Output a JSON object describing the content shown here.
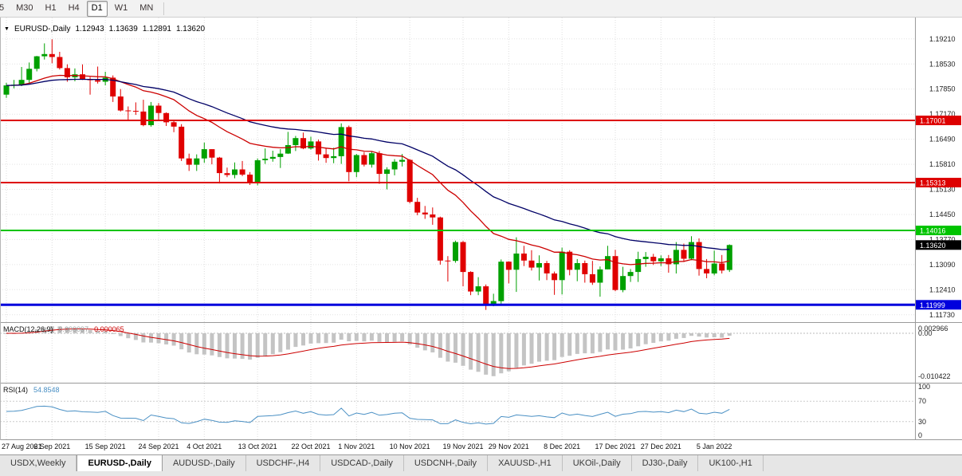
{
  "toolbar": {
    "timeframes": [
      {
        "label": "5",
        "active": false
      },
      {
        "label": "M30",
        "active": false
      },
      {
        "label": "H1",
        "active": false
      },
      {
        "label": "H4",
        "active": false
      },
      {
        "label": "D1",
        "active": true
      },
      {
        "label": "W1",
        "active": false
      },
      {
        "label": "MN",
        "active": false
      }
    ]
  },
  "chart_header": {
    "dropdown_icon": "▼",
    "symbol_label": "EURUSD-,Daily",
    "open": "1.12943",
    "high": "1.13639",
    "low": "1.12891",
    "close": "1.13620"
  },
  "price_axis": {
    "labels": [
      "1.19210",
      "1.18530",
      "1.17850",
      "1.17170",
      "1.16490",
      "1.15810",
      "1.15130",
      "1.14450",
      "1.13770",
      "1.13090",
      "1.12410",
      "1.11730"
    ],
    "tags": [
      {
        "label": "1.17001",
        "price": 1.17001,
        "color": "#dd0000"
      },
      {
        "label": "1.15313",
        "price": 1.15313,
        "color": "#dd0000"
      },
      {
        "label": "1.14016",
        "price": 1.14016,
        "color": "#00c400"
      },
      {
        "label": "1.13620",
        "price": 1.1362,
        "color": "#000000"
      },
      {
        "label": "1.11999",
        "price": 1.11999,
        "color": "#0000dd"
      }
    ]
  },
  "indicators": {
    "macd": {
      "label": "MACD(12,26,9)",
      "value_main": "0.000097",
      "value_signal": "0.000065",
      "axis_labels": [
        "0.002966",
        "0.00",
        "-0.010422"
      ]
    },
    "rsi": {
      "label": "RSI(14)",
      "value": "54.8548",
      "axis_labels": [
        "100",
        "70",
        "30",
        "0"
      ]
    }
  },
  "tabs": {
    "items": [
      "USDX,Weekly",
      "EURUSD-,Daily",
      "AUDUSD-,Daily",
      "USDCHF-,H4",
      "USDCAD-,Daily",
      "USDCNH-,Daily",
      "XAUUSD-,H1",
      "UKOil-,Daily",
      "DJ30-,Daily",
      "UK100-,H1"
    ],
    "active_index": 1
  },
  "chart_data": {
    "type": "candlestick",
    "title": "EURUSD-,Daily",
    "price_range": {
      "max": 1.1979,
      "min": 1.1153
    },
    "y_grid": [
      1.1921,
      1.1853,
      1.1785,
      1.1717,
      1.1649,
      1.1581,
      1.1513,
      1.1445,
      1.1377,
      1.1309,
      1.1241,
      1.1173
    ],
    "x_ticks": [
      {
        "bar": 0,
        "label": "27 Aug 2021"
      },
      {
        "bar": 6,
        "label": "6 Sep 2021"
      },
      {
        "bar": 13,
        "label": "15 Sep 2021"
      },
      {
        "bar": 20,
        "label": "24 Sep 2021"
      },
      {
        "bar": 26,
        "label": "4 Oct 2021"
      },
      {
        "bar": 33,
        "label": "13 Oct 2021"
      },
      {
        "bar": 40,
        "label": "22 Oct 2021"
      },
      {
        "bar": 46,
        "label": "1 Nov 2021"
      },
      {
        "bar": 53,
        "label": "10 Nov 2021"
      },
      {
        "bar": 60,
        "label": "19 Nov 2021"
      },
      {
        "bar": 66,
        "label": "29 Nov 2021"
      },
      {
        "bar": 73,
        "label": "8 Dec 2021"
      },
      {
        "bar": 80,
        "label": "17 Dec 2021"
      },
      {
        "bar": 86,
        "label": "27 Dec 2021"
      },
      {
        "bar": 93,
        "label": "5 Jan 2022"
      }
    ],
    "ohlc": [
      [
        1.177,
        1.1802,
        1.1761,
        1.1795
      ],
      [
        1.1795,
        1.181,
        1.1787,
        1.1797
      ],
      [
        1.1797,
        1.1845,
        1.1793,
        1.181
      ],
      [
        1.181,
        1.1857,
        1.18,
        1.184
      ],
      [
        1.184,
        1.1875,
        1.1833,
        1.1874
      ],
      [
        1.1874,
        1.1909,
        1.1865,
        1.188
      ],
      [
        1.188,
        1.192,
        1.1855,
        1.1872
      ],
      [
        1.1872,
        1.1886,
        1.1838,
        1.1842
      ],
      [
        1.1842,
        1.1852,
        1.1805,
        1.1817
      ],
      [
        1.1817,
        1.1841,
        1.1806,
        1.1825
      ],
      [
        1.1825,
        1.1852,
        1.181,
        1.1812
      ],
      [
        1.1812,
        1.1818,
        1.177,
        1.1809
      ],
      [
        1.1809,
        1.1846,
        1.18,
        1.1805
      ],
      [
        1.1805,
        1.1832,
        1.1795,
        1.1816
      ],
      [
        1.1816,
        1.1822,
        1.175,
        1.1765
      ],
      [
        1.1765,
        1.1785,
        1.1724,
        1.1727
      ],
      [
        1.1727,
        1.1738,
        1.17,
        1.1726
      ],
      [
        1.1726,
        1.1749,
        1.1715,
        1.1724
      ],
      [
        1.1724,
        1.1756,
        1.1684,
        1.1687
      ],
      [
        1.1687,
        1.175,
        1.1683,
        1.174
      ],
      [
        1.174,
        1.1747,
        1.1701,
        1.172
      ],
      [
        1.172,
        1.1722,
        1.1685,
        1.1695
      ],
      [
        1.1695,
        1.17,
        1.1668,
        1.1683
      ],
      [
        1.1683,
        1.169,
        1.159,
        1.1597
      ],
      [
        1.1597,
        1.161,
        1.1563,
        1.158
      ],
      [
        1.158,
        1.1608,
        1.1563,
        1.1597
      ],
      [
        1.1597,
        1.164,
        1.1585,
        1.1622
      ],
      [
        1.1622,
        1.1622,
        1.1581,
        1.1599
      ],
      [
        1.1599,
        1.1601,
        1.1529,
        1.1557
      ],
      [
        1.1557,
        1.1572,
        1.1546,
        1.1552
      ],
      [
        1.1552,
        1.1586,
        1.1543,
        1.1567
      ],
      [
        1.1567,
        1.159,
        1.1549,
        1.1553
      ],
      [
        1.1553,
        1.156,
        1.1525,
        1.153
      ],
      [
        1.153,
        1.1597,
        1.1524,
        1.1592
      ],
      [
        1.1592,
        1.1624,
        1.1582,
        1.1596
      ],
      [
        1.1596,
        1.1618,
        1.1588,
        1.1601
      ],
      [
        1.1601,
        1.1622,
        1.1571,
        1.161
      ],
      [
        1.161,
        1.1669,
        1.1609,
        1.1633
      ],
      [
        1.1633,
        1.1658,
        1.1617,
        1.1652
      ],
      [
        1.1652,
        1.1667,
        1.1622,
        1.1624
      ],
      [
        1.1624,
        1.1656,
        1.1621,
        1.1643
      ],
      [
        1.1643,
        1.1648,
        1.1591,
        1.1608
      ],
      [
        1.1608,
        1.1626,
        1.1585,
        1.1598
      ],
      [
        1.1598,
        1.1626,
        1.1584,
        1.1603
      ],
      [
        1.1603,
        1.1692,
        1.1582,
        1.1682
      ],
      [
        1.1682,
        1.1686,
        1.1535,
        1.156
      ],
      [
        1.156,
        1.1609,
        1.1546,
        1.1606
      ],
      [
        1.1606,
        1.1614,
        1.1575,
        1.158
      ],
      [
        1.158,
        1.1617,
        1.1572,
        1.1611
      ],
      [
        1.1611,
        1.1617,
        1.1528,
        1.1555
      ],
      [
        1.1555,
        1.1573,
        1.1513,
        1.1567
      ],
      [
        1.1567,
        1.1595,
        1.1551,
        1.1588
      ],
      [
        1.1588,
        1.1609,
        1.1575,
        1.1593
      ],
      [
        1.1593,
        1.1595,
        1.1475,
        1.1479
      ],
      [
        1.1479,
        1.149,
        1.1443,
        1.145
      ],
      [
        1.145,
        1.1468,
        1.1433,
        1.1445
      ],
      [
        1.1445,
        1.1464,
        1.1417,
        1.1437
      ],
      [
        1.1437,
        1.1439,
        1.1309,
        1.132
      ],
      [
        1.132,
        1.1332,
        1.1263,
        1.1319
      ],
      [
        1.1319,
        1.1374,
        1.1314,
        1.137
      ],
      [
        1.137,
        1.1373,
        1.125,
        1.1289
      ],
      [
        1.1289,
        1.1291,
        1.1226,
        1.1236
      ],
      [
        1.1236,
        1.1275,
        1.1226,
        1.125
      ],
      [
        1.125,
        1.1255,
        1.1186,
        1.12
      ],
      [
        1.12,
        1.123,
        1.1196,
        1.121
      ],
      [
        1.121,
        1.1323,
        1.1203,
        1.1317
      ],
      [
        1.1317,
        1.1318,
        1.1258,
        1.1295
      ],
      [
        1.1295,
        1.1383,
        1.1235,
        1.1339
      ],
      [
        1.1339,
        1.136,
        1.1305,
        1.132
      ],
      [
        1.132,
        1.1348,
        1.1293,
        1.1301
      ],
      [
        1.1301,
        1.1334,
        1.1266,
        1.1313
      ],
      [
        1.1313,
        1.1319,
        1.1267,
        1.1285
      ],
      [
        1.1285,
        1.129,
        1.1227,
        1.1267
      ],
      [
        1.1267,
        1.1355,
        1.1228,
        1.1344
      ],
      [
        1.1344,
        1.1348,
        1.128,
        1.1295
      ],
      [
        1.1295,
        1.1324,
        1.1264,
        1.1313
      ],
      [
        1.1313,
        1.132,
        1.126,
        1.1283
      ],
      [
        1.1283,
        1.1319,
        1.1254,
        1.126
      ],
      [
        1.126,
        1.1304,
        1.1222,
        1.1296
      ],
      [
        1.1296,
        1.136,
        1.1296,
        1.1332
      ],
      [
        1.1332,
        1.1349,
        1.1237,
        1.124
      ],
      [
        1.124,
        1.1303,
        1.1234,
        1.1278
      ],
      [
        1.1278,
        1.1297,
        1.1262,
        1.1289
      ],
      [
        1.1289,
        1.1344,
        1.1262,
        1.1324
      ],
      [
        1.1324,
        1.1343,
        1.1303,
        1.133
      ],
      [
        1.133,
        1.1338,
        1.1308,
        1.1318
      ],
      [
        1.1318,
        1.1334,
        1.1305,
        1.1326
      ],
      [
        1.1326,
        1.1335,
        1.1287,
        1.131
      ],
      [
        1.131,
        1.137,
        1.1285,
        1.1349
      ],
      [
        1.1349,
        1.1366,
        1.1316,
        1.1325
      ],
      [
        1.1325,
        1.1386,
        1.1321,
        1.137
      ],
      [
        1.137,
        1.138,
        1.1279,
        1.1297
      ],
      [
        1.1297,
        1.1324,
        1.1272,
        1.1285
      ],
      [
        1.1285,
        1.1347,
        1.128,
        1.1312
      ],
      [
        1.1312,
        1.1335,
        1.1285,
        1.1293
      ],
      [
        1.12943,
        1.13639,
        1.12891,
        1.1362
      ]
    ],
    "horizontal_lines": [
      {
        "price": 1.17001,
        "color": "#dd0000",
        "width": 2
      },
      {
        "price": 1.15313,
        "color": "#dd0000",
        "width": 2
      },
      {
        "price": 1.14016,
        "color": "#00c400",
        "width": 2
      },
      {
        "price": 1.11999,
        "color": "#0000dd",
        "width": 3
      }
    ],
    "moving_averages": [
      {
        "period": 20,
        "color": "#cc0000"
      },
      {
        "period": 40,
        "color": "#000066"
      }
    ],
    "macd_params": [
      12,
      26,
      9
    ],
    "rsi_period": 14,
    "rsi_levels": [
      70,
      30
    ],
    "colors": {
      "bull": "#00a000",
      "bear": "#e00000",
      "macd_hist": "#c4c4c4",
      "macd_signal": "#cc0000",
      "rsi": "#4a90c4"
    }
  }
}
